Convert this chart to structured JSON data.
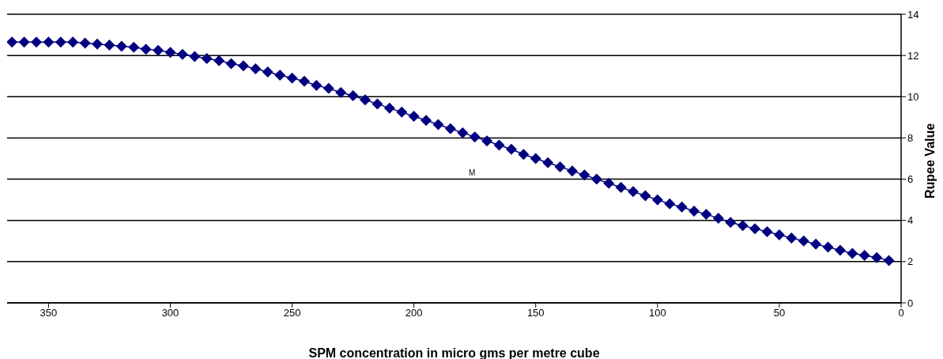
{
  "chart_data": {
    "type": "line",
    "xlabel": "SPM concentration in micro gms per metre cube",
    "ylabel": "Rupee Value",
    "x": [
      365,
      360,
      355,
      350,
      345,
      340,
      335,
      330,
      325,
      320,
      315,
      310,
      305,
      300,
      295,
      290,
      285,
      280,
      275,
      270,
      265,
      260,
      255,
      250,
      245,
      240,
      235,
      230,
      225,
      220,
      215,
      210,
      205,
      200,
      195,
      190,
      185,
      180,
      175,
      170,
      165,
      160,
      155,
      150,
      145,
      140,
      135,
      130,
      125,
      120,
      115,
      110,
      105,
      100,
      95,
      90,
      85,
      80,
      75,
      70,
      65,
      60,
      55,
      50,
      45,
      40,
      35,
      30,
      25,
      20,
      15,
      10,
      5
    ],
    "series": [
      {
        "color": "#000080",
        "values": [
          12.65,
          12.65,
          12.65,
          12.65,
          12.65,
          12.65,
          12.6,
          12.55,
          12.5,
          12.45,
          12.4,
          12.3,
          12.25,
          12.15,
          12.05,
          11.95,
          11.85,
          11.75,
          11.6,
          11.5,
          11.35,
          11.2,
          11.05,
          10.9,
          10.75,
          10.55,
          10.4,
          10.2,
          10.05,
          9.85,
          9.65,
          9.45,
          9.25,
          9.05,
          8.85,
          8.65,
          8.45,
          8.25,
          8.05,
          7.85,
          7.65,
          7.45,
          7.2,
          7.0,
          6.8,
          6.6,
          6.4,
          6.2,
          6.0,
          5.8,
          5.6,
          5.4,
          5.2,
          5.0,
          4.8,
          4.65,
          4.45,
          4.3,
          4.1,
          3.9,
          3.75,
          3.6,
          3.45,
          3.3,
          3.15,
          3.0,
          2.85,
          2.7,
          2.55,
          2.4,
          2.3,
          2.2,
          2.05
        ]
      }
    ],
    "xlim": [
      367,
      0
    ],
    "xticks": [
      350,
      300,
      250,
      200,
      150,
      100,
      50,
      0
    ],
    "ylim": [
      0,
      14
    ],
    "yticks": [
      0,
      2,
      4,
      6,
      8,
      10,
      12,
      14
    ],
    "grid": "y",
    "legend": false,
    "marker": "diamond",
    "line_style": "solid",
    "annotations": [
      "M"
    ]
  }
}
